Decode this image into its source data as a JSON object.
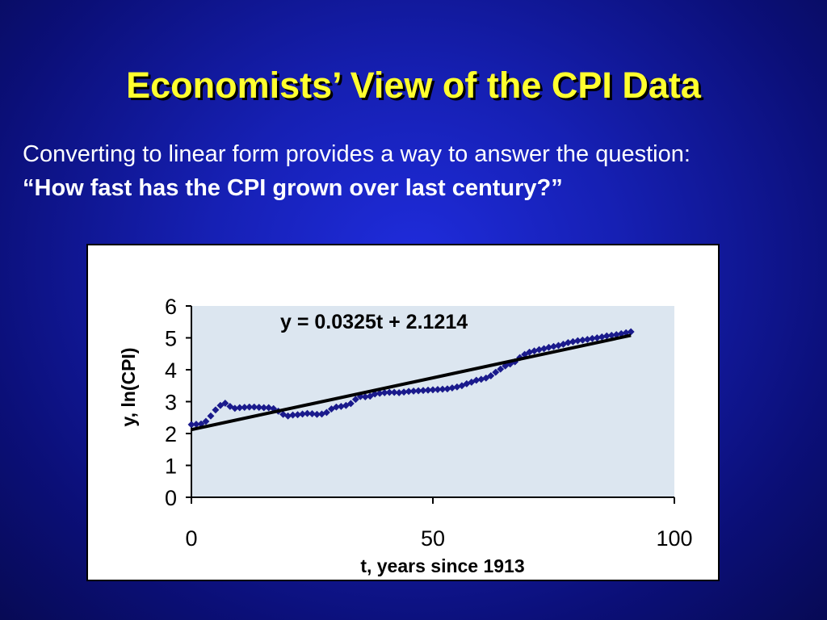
{
  "slide": {
    "title": "Economists’ View of the CPI Data",
    "line1": "Converting to linear form provides a way to answer the question:",
    "line2": "“How fast has the CPI grown over last century?”"
  },
  "chart_data": {
    "type": "scatter",
    "xlabel": "t, years since 1913",
    "ylabel": "y, ln(CPI)",
    "xlim": [
      0,
      100
    ],
    "ylim": [
      0,
      6
    ],
    "xticks": [
      0,
      50,
      100
    ],
    "yticks": [
      0,
      1,
      2,
      3,
      4,
      5,
      6
    ],
    "plot_background": "#dce6f0",
    "marker_color": "#1a1a8c",
    "trendline": {
      "equation": "y = 0.0325t + 2.1214",
      "slope": 0.0325,
      "intercept": 2.1214,
      "x_range": [
        0,
        91
      ],
      "color": "#000000"
    },
    "series": [
      {
        "x": [
          0,
          1,
          2,
          3,
          4,
          5,
          6,
          7,
          8,
          9,
          10,
          11,
          12,
          13,
          14,
          15,
          16,
          17,
          18,
          19,
          20,
          21,
          22,
          23,
          24,
          25,
          26,
          27,
          28,
          29,
          30,
          31,
          32,
          33,
          34,
          35,
          36,
          37,
          38,
          39,
          40,
          41,
          42,
          43,
          44,
          45,
          46,
          47,
          48,
          49,
          50,
          51,
          52,
          53,
          54,
          55,
          56,
          57,
          58,
          59,
          60,
          61,
          62,
          63,
          64,
          65,
          66,
          67,
          68,
          69,
          70,
          71,
          72,
          73,
          74,
          75,
          76,
          77,
          78,
          79,
          80,
          81,
          82,
          83,
          84,
          85,
          86,
          87,
          88,
          89,
          90,
          91
        ],
        "y": [
          2.28,
          2.29,
          2.3,
          2.38,
          2.55,
          2.74,
          2.88,
          2.95,
          2.85,
          2.79,
          2.81,
          2.82,
          2.83,
          2.83,
          2.82,
          2.81,
          2.81,
          2.78,
          2.7,
          2.6,
          2.55,
          2.58,
          2.59,
          2.61,
          2.63,
          2.62,
          2.6,
          2.61,
          2.66,
          2.77,
          2.83,
          2.85,
          2.88,
          2.94,
          3.07,
          3.16,
          3.15,
          3.17,
          3.24,
          3.26,
          3.28,
          3.29,
          3.29,
          3.28,
          3.3,
          3.32,
          3.33,
          3.34,
          3.35,
          3.36,
          3.37,
          3.38,
          3.39,
          3.4,
          3.43,
          3.46,
          3.5,
          3.56,
          3.61,
          3.67,
          3.7,
          3.74,
          3.81,
          3.92,
          4.02,
          4.12,
          4.18,
          4.25,
          4.38,
          4.48,
          4.55,
          4.59,
          4.63,
          4.66,
          4.7,
          4.73,
          4.76,
          4.8,
          4.85,
          4.88,
          4.91,
          4.93,
          4.95,
          4.98,
          5.0,
          5.03,
          5.06,
          5.08,
          5.1,
          5.13,
          5.16,
          5.19
        ]
      }
    ]
  }
}
